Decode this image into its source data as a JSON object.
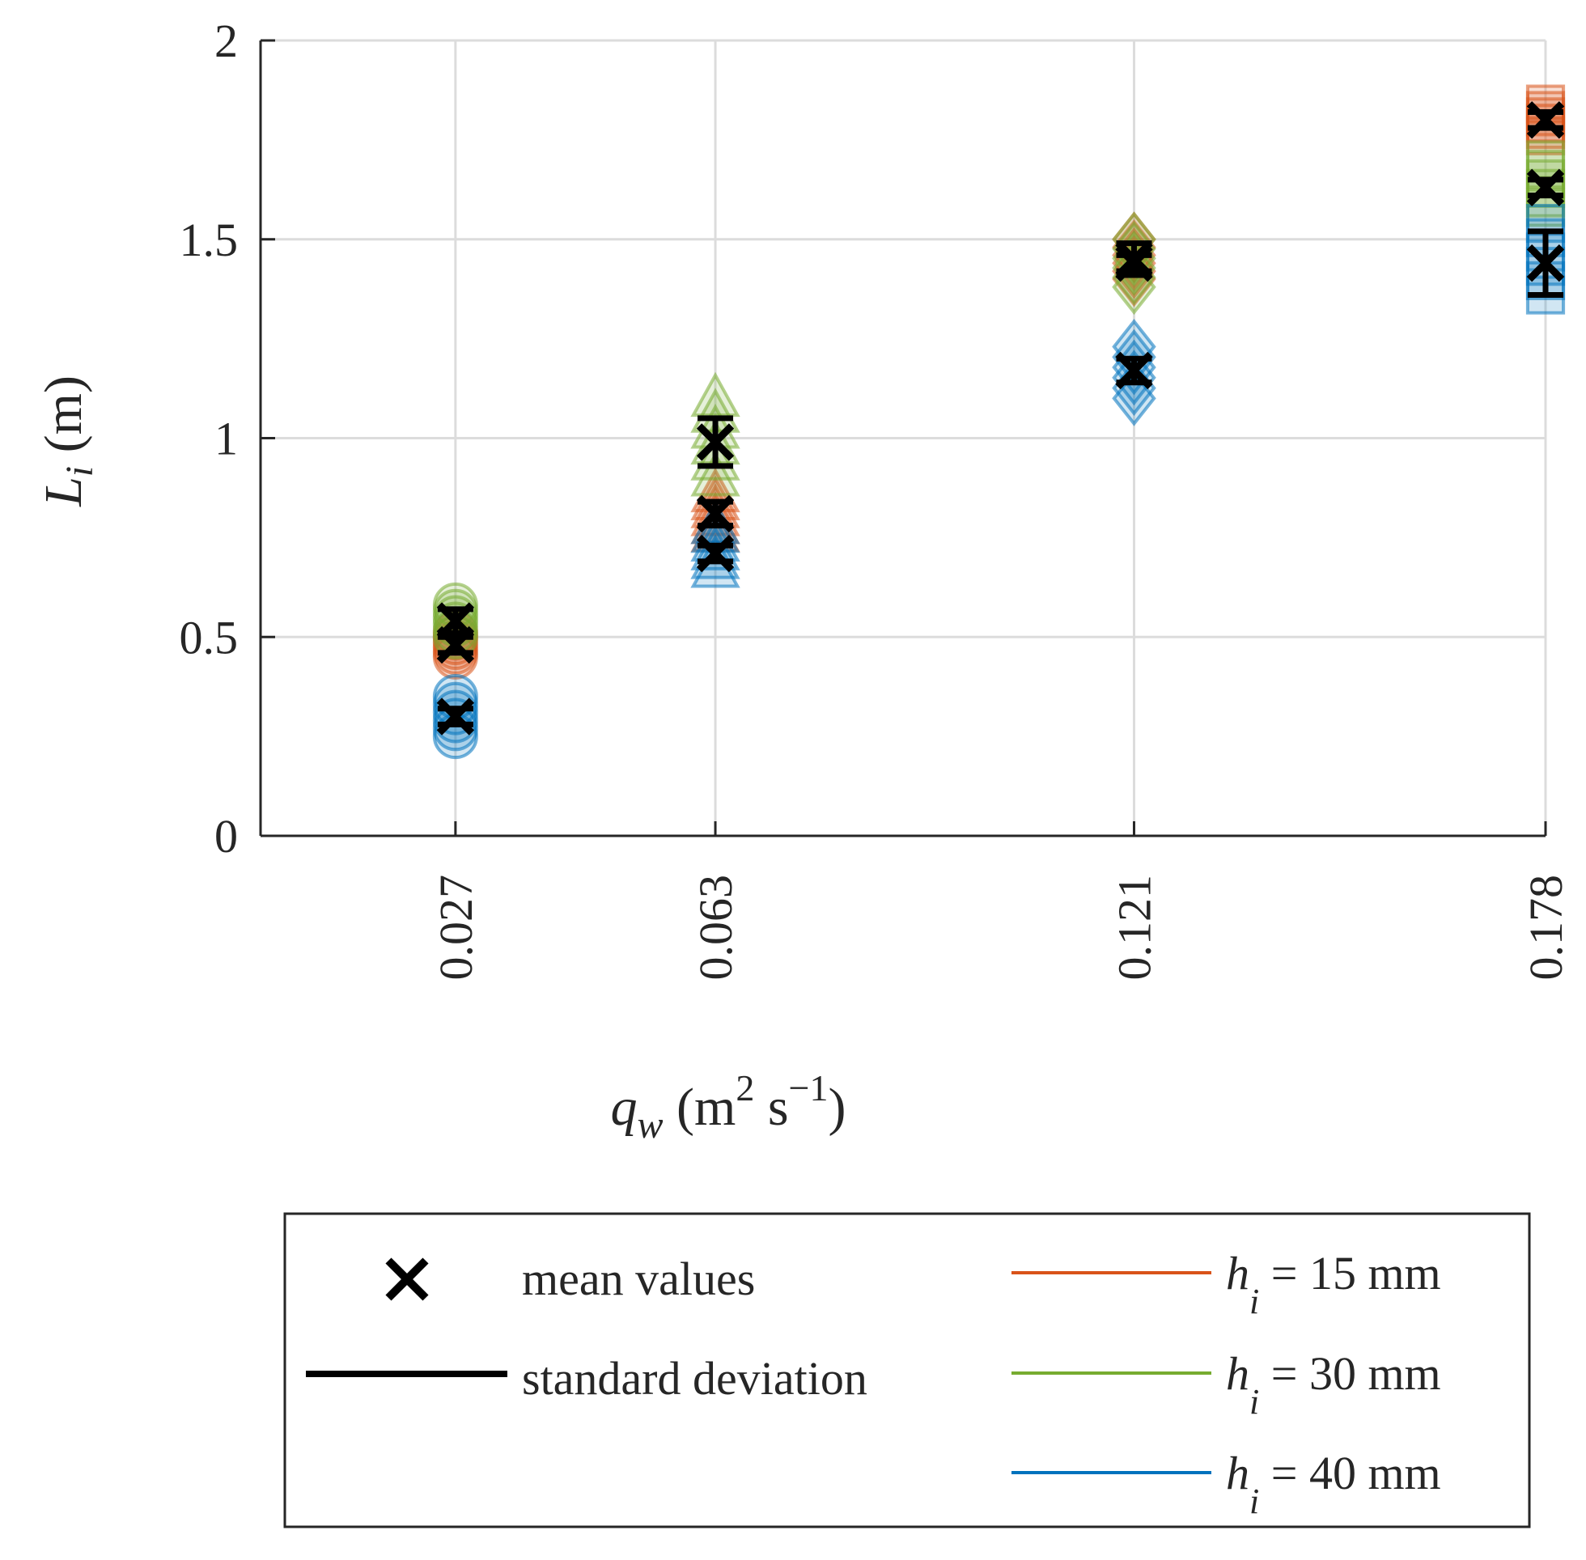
{
  "chart_data": {
    "type": "scatter",
    "title": "",
    "xlabel": {
      "main": "q",
      "sub": "w",
      "unit_prefix": " (m",
      "sup1": "2",
      "mid": " s",
      "sup2": "−1",
      "close": ")"
    },
    "ylabel": {
      "main": "L",
      "sub": "i",
      "unit": " (m)"
    },
    "x_ticks": [
      0.027,
      0.063,
      0.121,
      0.178
    ],
    "x_tick_labels": [
      "0.027",
      "0.063",
      "0.121",
      "0.178"
    ],
    "y_ticks": [
      0,
      0.5,
      1,
      1.5,
      2
    ],
    "y_tick_labels": [
      "0",
      "0.5",
      "1",
      "1.5",
      "2"
    ],
    "xlim": [
      0,
      0.178
    ],
    "ylim": [
      0,
      2
    ],
    "grid": true,
    "legend_placement": "below",
    "marker_by_x": [
      "circle",
      "triangle",
      "diamond",
      "square"
    ],
    "series": [
      {
        "name": "h_i = 15 mm",
        "label_main": "h",
        "label_sub": "i",
        "label_rest": " = 15 mm",
        "color": "#D95319",
        "x": [
          0.027,
          0.063,
          0.121,
          0.178
        ],
        "mean": [
          0.48,
          0.81,
          1.44,
          1.8
        ],
        "sd": [
          0.02,
          0.03,
          0.02,
          0.02
        ],
        "samples": [
          [
            0.45,
            0.48,
            0.51
          ],
          [
            0.76,
            0.81,
            0.86
          ],
          [
            1.4,
            1.44,
            1.5
          ],
          [
            1.76,
            1.8,
            1.84
          ]
        ]
      },
      {
        "name": "h_i = 30 mm",
        "label_main": "h",
        "label_sub": "i",
        "label_rest": " = 30 mm",
        "color": "#77AC30",
        "x": [
          0.027,
          0.063,
          0.121,
          0.178
        ],
        "mean": [
          0.54,
          0.99,
          1.45,
          1.63
        ],
        "sd": [
          0.03,
          0.06,
          0.04,
          0.02
        ],
        "samples": [
          [
            0.5,
            0.54,
            0.58
          ],
          [
            0.9,
            0.99,
            1.1
          ],
          [
            1.38,
            1.45,
            1.5
          ],
          [
            1.58,
            1.63,
            1.7
          ]
        ]
      },
      {
        "name": "h_i = 40 mm",
        "label_main": "h",
        "label_sub": "i",
        "label_rest": " = 40 mm",
        "color": "#0072BD",
        "x": [
          0.027,
          0.063,
          0.121,
          0.178
        ],
        "mean": [
          0.3,
          0.71,
          1.17,
          1.44
        ],
        "sd": [
          0.02,
          0.02,
          0.03,
          0.08
        ],
        "samples": [
          [
            0.25,
            0.3,
            0.35
          ],
          [
            0.67,
            0.71,
            0.78
          ],
          [
            1.1,
            1.17,
            1.23
          ],
          [
            1.36,
            1.44,
            1.54
          ]
        ]
      }
    ],
    "legend": {
      "mean_label": "mean values",
      "sd_label": "standard deviation",
      "mean_symbol": "×"
    }
  }
}
